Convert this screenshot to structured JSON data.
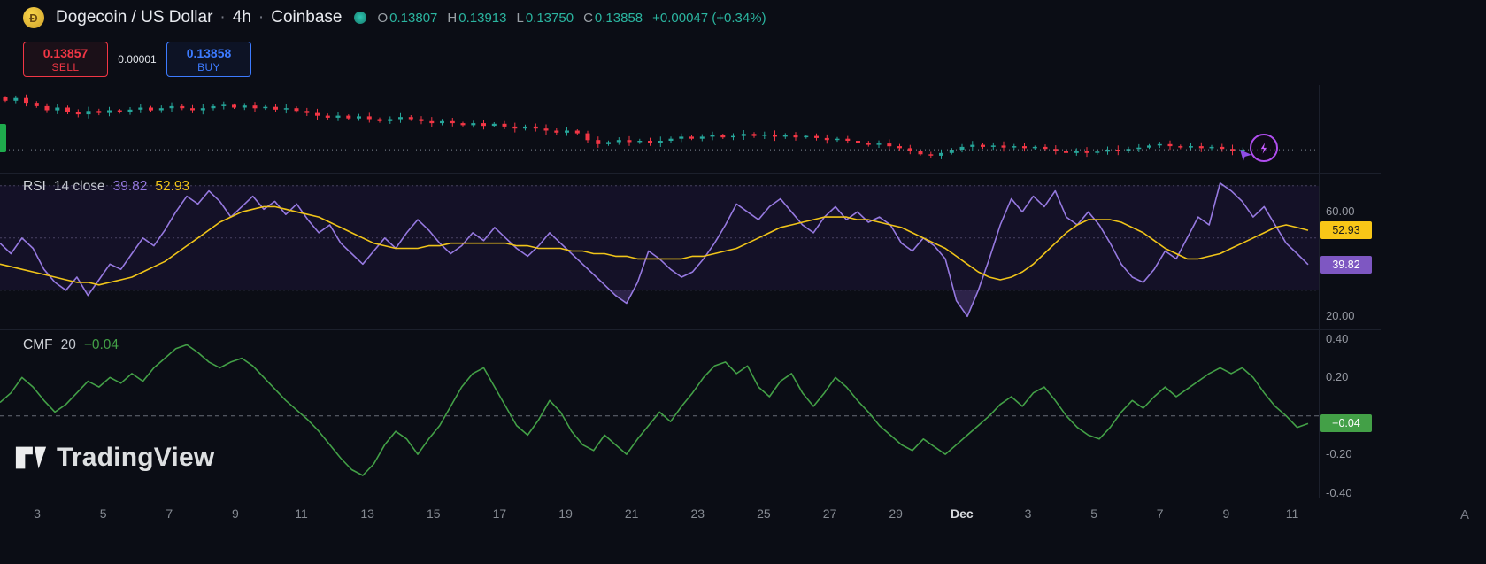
{
  "header": {
    "logo_glyph": "Ð",
    "symbol": "Dogecoin / US Dollar",
    "sep1": "·",
    "interval": "4h",
    "sep2": "·",
    "exchange": "Coinbase",
    "ohlc": {
      "o_label": "O",
      "o_value": "0.13807",
      "h_label": "H",
      "h_value": "0.13913",
      "l_label": "L",
      "l_value": "0.13750",
      "c_label": "C",
      "c_value": "0.13858",
      "change": "+0.00047 (+0.34%)"
    }
  },
  "trade_panel": {
    "sell_price": "0.13857",
    "sell_label": "SELL",
    "spread": "0.00001",
    "buy_price": "0.13858",
    "buy_label": "BUY"
  },
  "indicators": {
    "rsi": {
      "title": "RSI",
      "params": "14 close",
      "value_rsi": "39.82",
      "value_ma": "52.93"
    },
    "cmf": {
      "title": "CMF",
      "params": "20",
      "value": "−0.04"
    }
  },
  "axis": {
    "rsi_labels": [
      {
        "text": "60.00",
        "value": 60
      },
      {
        "text": "20.00",
        "value": 20
      }
    ],
    "rsi_badges": [
      {
        "text": "52.93",
        "value": 52.93,
        "bg": "#f8c617",
        "fg": "#1c1c1c"
      },
      {
        "text": "39.82",
        "value": 39.82,
        "bg": "#7e57c2",
        "fg": "#ffffff"
      }
    ],
    "cmf_labels": [
      {
        "text": "0.40",
        "value": 0.4
      },
      {
        "text": "0.20",
        "value": 0.2
      },
      {
        "text": "-0.20",
        "value": -0.2
      },
      {
        "text": "-0.40",
        "value": -0.4
      }
    ],
    "cmf_badges": [
      {
        "text": "−0.04",
        "value": -0.04,
        "bg": "#43a047",
        "fg": "#ffffff"
      }
    ]
  },
  "watermark_text": "TradingView",
  "corner_label": "A",
  "colors": {
    "up": "#26a69a",
    "down": "#f23645",
    "buy": "#3d7bff",
    "sell": "#f23645",
    "rsi_line": "#9679e0",
    "rsi_ma": "#f0c419",
    "cmf_line": "#43a047",
    "ohlc_value": "#2bb5a0",
    "badge_yellow": "#f8c617",
    "badge_purple": "#7e57c2",
    "badge_green": "#43a047"
  },
  "chart_data": [
    {
      "type": "candlestick",
      "title": "Dogecoin / US Dollar · 4h · Coinbase",
      "last": {
        "open": 0.13807,
        "high": 0.13913,
        "low": 0.1375,
        "close": 0.13858,
        "change": "+0.00047 (+0.34%)"
      },
      "up_color": "#26a69a",
      "down_color": "#f23645",
      "ylim": [
        0.1352,
        0.1476
      ],
      "categories": [
        "3",
        "5",
        "7",
        "9",
        "11",
        "13",
        "15",
        "17",
        "19",
        "21",
        "23",
        "25",
        "27",
        "29",
        "Dec",
        "3",
        "5",
        "7",
        "9",
        "11"
      ],
      "closes": [
        0.1458,
        0.1462,
        0.1455,
        0.145,
        0.1444,
        0.1448,
        0.1441,
        0.1438,
        0.1443,
        0.144,
        0.1444,
        0.1441,
        0.1445,
        0.1448,
        0.1444,
        0.1447,
        0.145,
        0.1447,
        0.1444,
        0.1447,
        0.145,
        0.1452,
        0.1448,
        0.1451,
        0.1447,
        0.1449,
        0.1445,
        0.1447,
        0.1443,
        0.144,
        0.1436,
        0.1433,
        0.1436,
        0.1432,
        0.1435,
        0.1431,
        0.1428,
        0.1431,
        0.1434,
        0.1431,
        0.1428,
        0.1425,
        0.1428,
        0.1425,
        0.1422,
        0.1425,
        0.1421,
        0.1424,
        0.142,
        0.1417,
        0.142,
        0.1417,
        0.1414,
        0.1411,
        0.1414,
        0.141,
        0.14,
        0.1394,
        0.1397,
        0.14,
        0.1397,
        0.1399,
        0.1396,
        0.1399,
        0.1402,
        0.1405,
        0.1402,
        0.1405,
        0.1407,
        0.1404,
        0.1406,
        0.1409,
        0.1406,
        0.1408,
        0.1405,
        0.1407,
        0.1404,
        0.1406,
        0.1403,
        0.14,
        0.1402,
        0.1399,
        0.1396,
        0.1393,
        0.1395,
        0.1391,
        0.1388,
        0.1384,
        0.1379,
        0.1377,
        0.1381,
        0.1386,
        0.139,
        0.1393,
        0.139,
        0.1392,
        0.1389,
        0.1391,
        0.1388,
        0.139,
        0.1387,
        0.1384,
        0.1381,
        0.1384,
        0.1381,
        0.1383,
        0.1386,
        0.1384,
        0.1387,
        0.1389,
        0.1392,
        0.1394,
        0.1391,
        0.1389,
        0.1391,
        0.1388,
        0.139,
        0.1387,
        0.1384,
        0.13858
      ]
    },
    {
      "type": "line",
      "title": "RSI 14 close",
      "ylim": [
        15,
        75
      ],
      "bands": {
        "upper": 70,
        "middle": 50,
        "lower": 30
      },
      "last_values": {
        "rsi": 39.82,
        "ma": 52.93
      },
      "series": [
        {
          "name": "RSI",
          "color": "#9679e0",
          "values": [
            48,
            44,
            50,
            46,
            38,
            33,
            30,
            35,
            28,
            34,
            40,
            38,
            44,
            50,
            47,
            53,
            60,
            66,
            63,
            68,
            64,
            58,
            62,
            66,
            61,
            64,
            59,
            63,
            57,
            52,
            55,
            48,
            44,
            40,
            45,
            50,
            46,
            52,
            57,
            53,
            48,
            44,
            47,
            52,
            49,
            54,
            50,
            46,
            43,
            47,
            52,
            48,
            44,
            40,
            36,
            32,
            28,
            25,
            33,
            45,
            42,
            38,
            35,
            37,
            42,
            48,
            55,
            63,
            60,
            57,
            62,
            65,
            60,
            55,
            52,
            58,
            62,
            57,
            60,
            56,
            58,
            55,
            48,
            45,
            50,
            47,
            42,
            26,
            20,
            30,
            42,
            55,
            65,
            60,
            66,
            62,
            68,
            58,
            55,
            60,
            55,
            48,
            40,
            35,
            33,
            38,
            45,
            42,
            50,
            58,
            55,
            71,
            68,
            64,
            58,
            62,
            55,
            48,
            44,
            39.82
          ]
        },
        {
          "name": "RSI-based MA",
          "color": "#f0c419",
          "values": [
            40,
            39,
            38,
            37,
            36,
            35,
            34,
            33,
            33,
            32,
            33,
            34,
            35,
            37,
            39,
            41,
            44,
            47,
            50,
            53,
            56,
            58,
            60,
            61,
            62,
            62,
            61,
            60,
            59,
            58,
            56,
            54,
            52,
            50,
            48,
            47,
            46,
            46,
            46,
            47,
            47,
            48,
            48,
            48,
            48,
            48,
            48,
            47,
            47,
            46,
            46,
            46,
            45,
            45,
            44,
            44,
            43,
            43,
            42,
            42,
            42,
            42,
            42,
            43,
            43,
            44,
            45,
            46,
            48,
            50,
            52,
            54,
            55,
            56,
            57,
            58,
            58,
            58,
            57,
            57,
            56,
            55,
            54,
            52,
            50,
            48,
            46,
            43,
            40,
            37,
            35,
            34,
            35,
            37,
            40,
            44,
            48,
            52,
            55,
            57,
            57,
            57,
            56,
            54,
            52,
            49,
            46,
            44,
            42,
            42,
            43,
            44,
            46,
            48,
            50,
            52,
            54,
            55,
            54,
            52.93
          ]
        }
      ]
    },
    {
      "type": "line",
      "title": "CMF 20",
      "ylim": [
        -0.425,
        0.45
      ],
      "zero_line": 0,
      "last_value": -0.04,
      "series": [
        {
          "name": "CMF",
          "color": "#43a047",
          "values": [
            0.07,
            0.12,
            0.2,
            0.15,
            0.08,
            0.02,
            0.06,
            0.12,
            0.18,
            0.15,
            0.2,
            0.17,
            0.22,
            0.18,
            0.25,
            0.3,
            0.35,
            0.37,
            0.33,
            0.28,
            0.25,
            0.28,
            0.3,
            0.26,
            0.2,
            0.14,
            0.08,
            0.03,
            -0.02,
            -0.08,
            -0.15,
            -0.22,
            -0.28,
            -0.31,
            -0.25,
            -0.15,
            -0.08,
            -0.12,
            -0.2,
            -0.12,
            -0.05,
            0.05,
            0.15,
            0.22,
            0.25,
            0.15,
            0.05,
            -0.05,
            -0.1,
            -0.02,
            0.08,
            0.02,
            -0.08,
            -0.15,
            -0.18,
            -0.1,
            -0.15,
            -0.2,
            -0.12,
            -0.05,
            0.02,
            -0.03,
            0.05,
            0.12,
            0.2,
            0.26,
            0.28,
            0.22,
            0.26,
            0.15,
            0.1,
            0.18,
            0.22,
            0.12,
            0.05,
            0.12,
            0.2,
            0.15,
            0.08,
            0.02,
            -0.05,
            -0.1,
            -0.15,
            -0.18,
            -0.12,
            -0.16,
            -0.2,
            -0.15,
            -0.1,
            -0.05,
            0.0,
            0.06,
            0.1,
            0.05,
            0.12,
            0.15,
            0.08,
            0.0,
            -0.06,
            -0.1,
            -0.12,
            -0.06,
            0.02,
            0.08,
            0.04,
            0.1,
            0.15,
            0.1,
            0.14,
            0.18,
            0.22,
            0.25,
            0.22,
            0.25,
            0.2,
            0.12,
            0.05,
            0.0,
            -0.06,
            -0.04
          ]
        }
      ]
    }
  ]
}
